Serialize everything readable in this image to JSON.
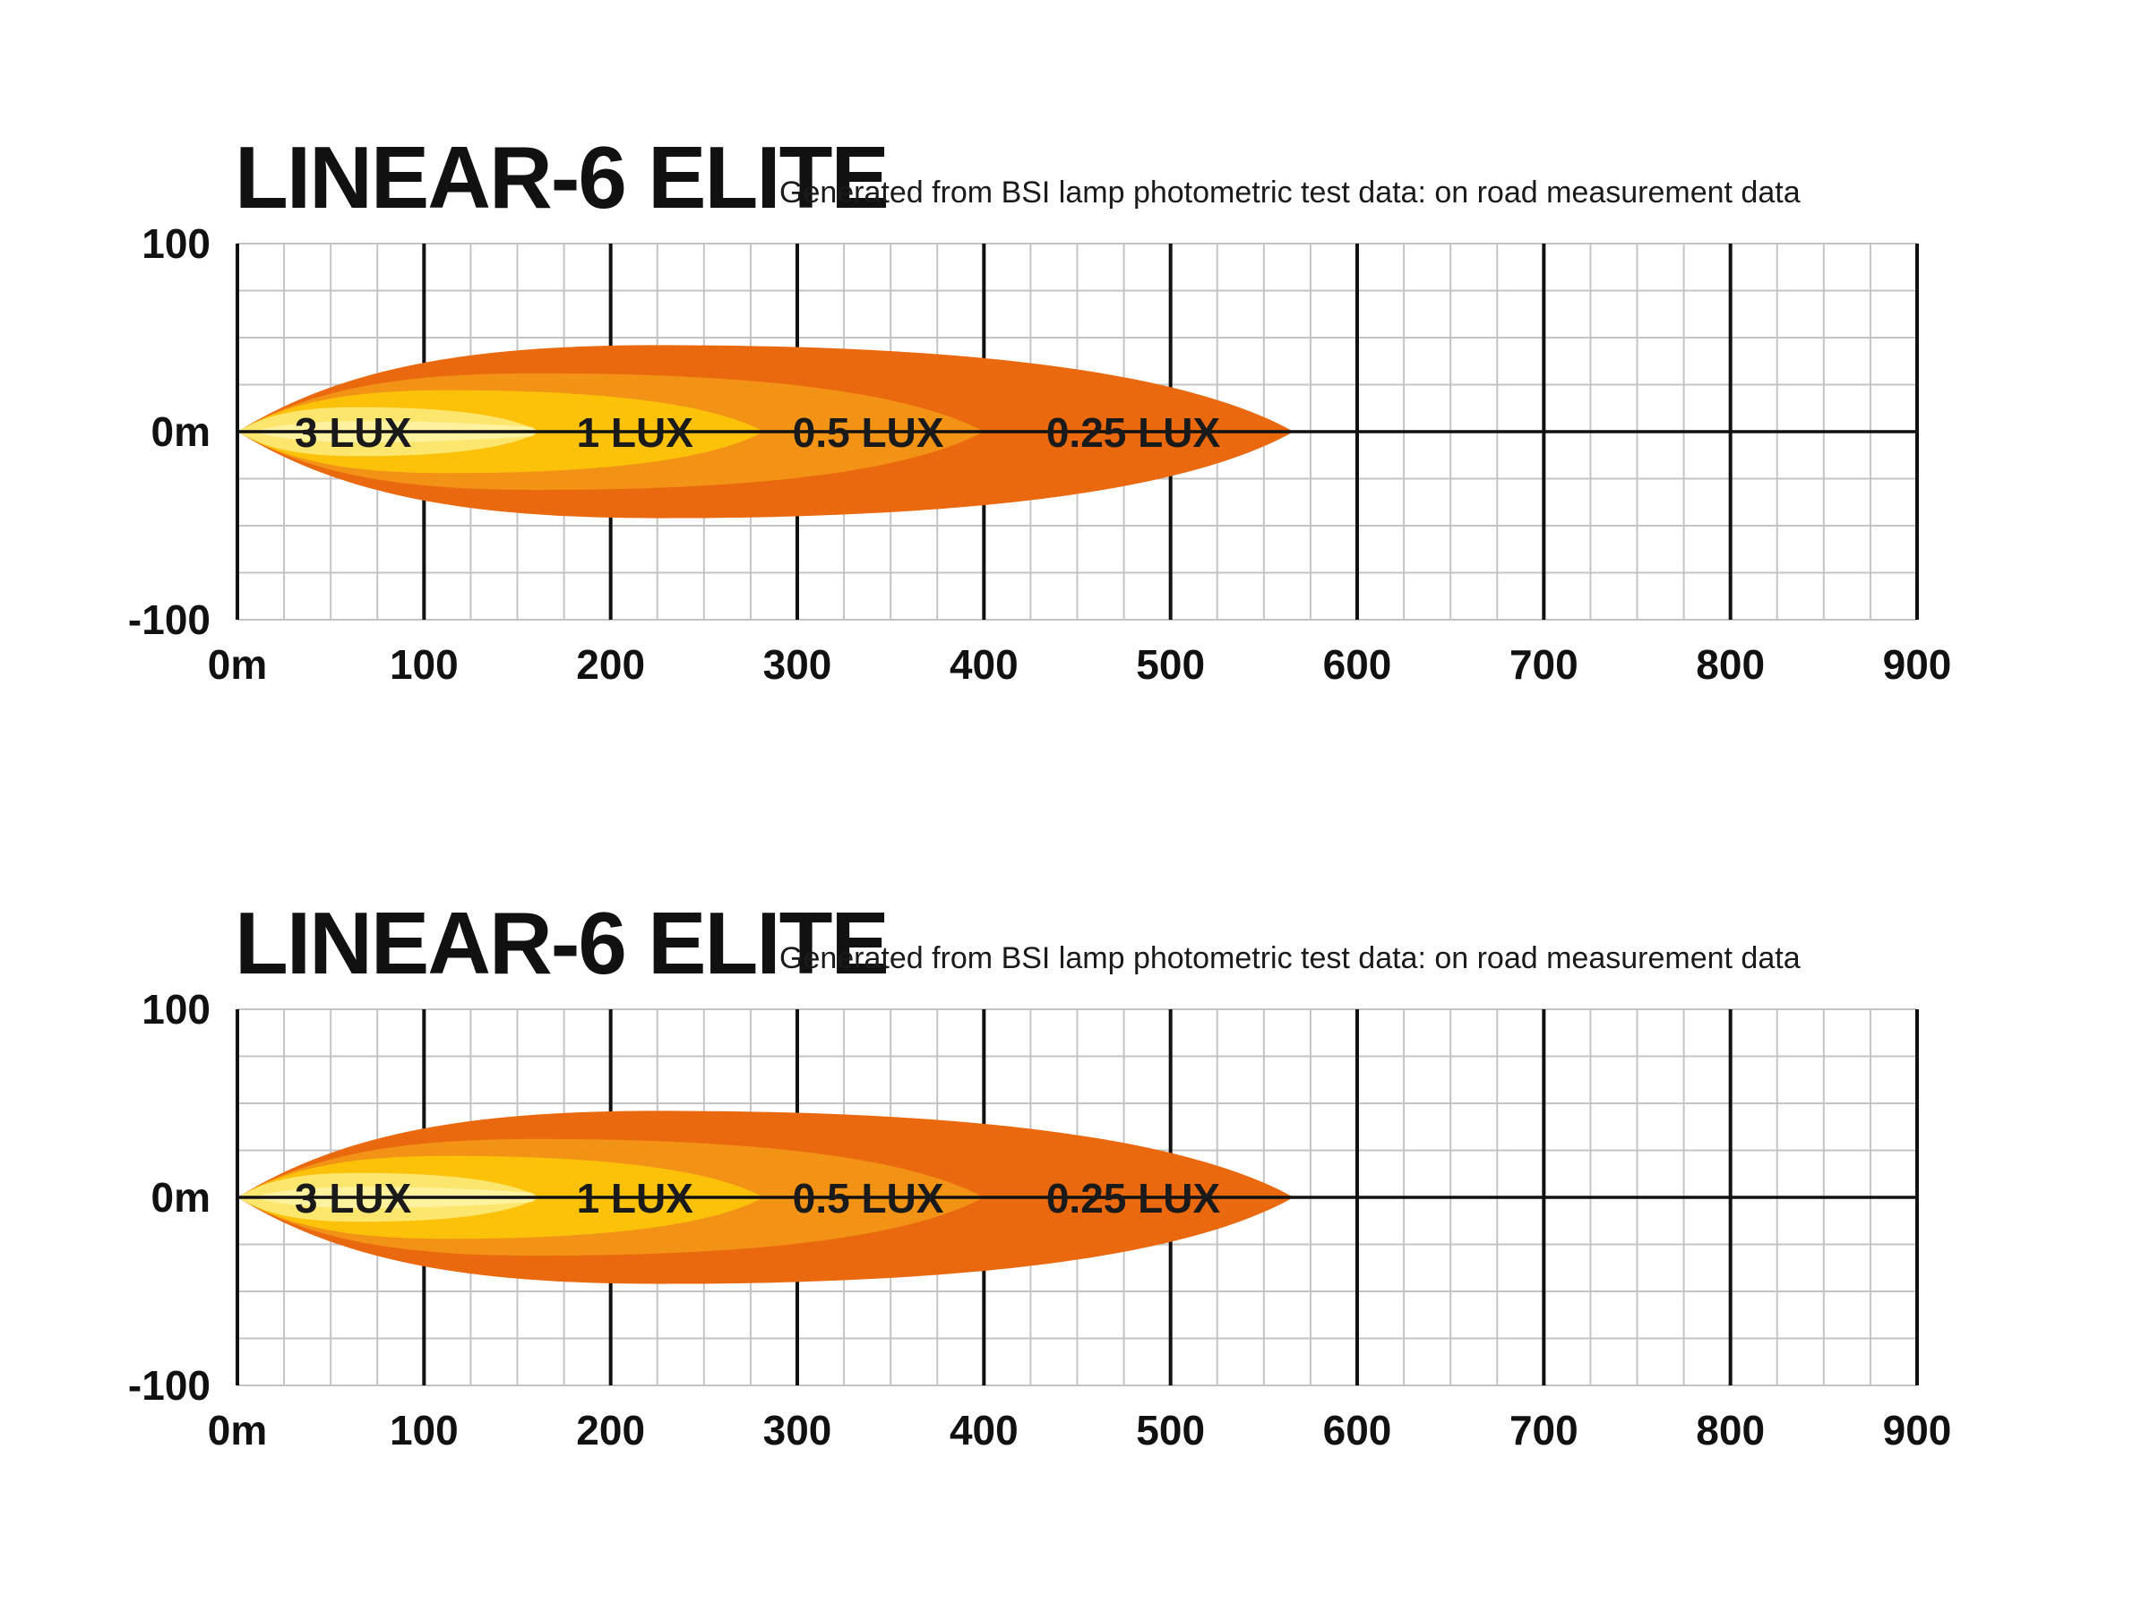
{
  "colors": {
    "background": "#ffffff",
    "grid_minor": "#c4c4c4",
    "grid_major": "#111111",
    "zone_0_25_lux": "#ea690f",
    "zone_0_5_lux": "#f39315",
    "zone_1_lux": "#fcc20a",
    "zone_3_lux": "#fde66d",
    "zone_3_lux_core": "#fff3a8"
  },
  "chart_data": [
    {
      "type": "area",
      "title": "LINEAR-6 ELITE",
      "subtitle": "Generated from BSI lamp photometric test data: on road measurement data",
      "xlabel": "",
      "ylabel": "",
      "xlim": [
        0,
        900
      ],
      "ylim": [
        -100,
        100
      ],
      "x_ticks": [
        "0m",
        "100",
        "200",
        "300",
        "400",
        "500",
        "600",
        "700",
        "800",
        "900"
      ],
      "y_ticks": [
        "100",
        "0m",
        "-100"
      ],
      "grid": true,
      "series": [
        {
          "name": "0.25 LUX",
          "reach_m": 566,
          "half_width_m": 46,
          "color_key": "zone_0_25_lux"
        },
        {
          "name": "0.5 LUX",
          "reach_m": 400,
          "half_width_m": 31,
          "color_key": "zone_0_5_lux"
        },
        {
          "name": "1 LUX",
          "reach_m": 282,
          "half_width_m": 22,
          "color_key": "zone_1_lux"
        },
        {
          "name": "3 LUX",
          "reach_m": 162,
          "half_width_m": 13,
          "color_key": "zone_3_lux"
        }
      ],
      "labels": [
        {
          "text": "3 LUX",
          "x": 62
        },
        {
          "text": "1 LUX",
          "x": 213
        },
        {
          "text": "0.5 LUX",
          "x": 338
        },
        {
          "text": "0.25 LUX",
          "x": 480
        }
      ]
    },
    {
      "type": "area",
      "title": "LINEAR-6 ELITE",
      "subtitle": "Generated from BSI lamp photometric test data: on road measurement data",
      "xlabel": "",
      "ylabel": "",
      "xlim": [
        0,
        900
      ],
      "ylim": [
        -100,
        100
      ],
      "x_ticks": [
        "0m",
        "100",
        "200",
        "300",
        "400",
        "500",
        "600",
        "700",
        "800",
        "900"
      ],
      "y_ticks": [
        "100",
        "0m",
        "-100"
      ],
      "grid": true,
      "series": [
        {
          "name": "0.25 LUX",
          "reach_m": 566,
          "half_width_m": 46,
          "color_key": "zone_0_25_lux"
        },
        {
          "name": "0.5 LUX",
          "reach_m": 400,
          "half_width_m": 31,
          "color_key": "zone_0_5_lux"
        },
        {
          "name": "1 LUX",
          "reach_m": 282,
          "half_width_m": 22,
          "color_key": "zone_1_lux"
        },
        {
          "name": "3 LUX",
          "reach_m": 162,
          "half_width_m": 13,
          "color_key": "zone_3_lux"
        }
      ],
      "labels": [
        {
          "text": "3 LUX",
          "x": 62
        },
        {
          "text": "1 LUX",
          "x": 213
        },
        {
          "text": "0.5 LUX",
          "x": 338
        },
        {
          "text": "0.25 LUX",
          "x": 480
        }
      ]
    }
  ]
}
